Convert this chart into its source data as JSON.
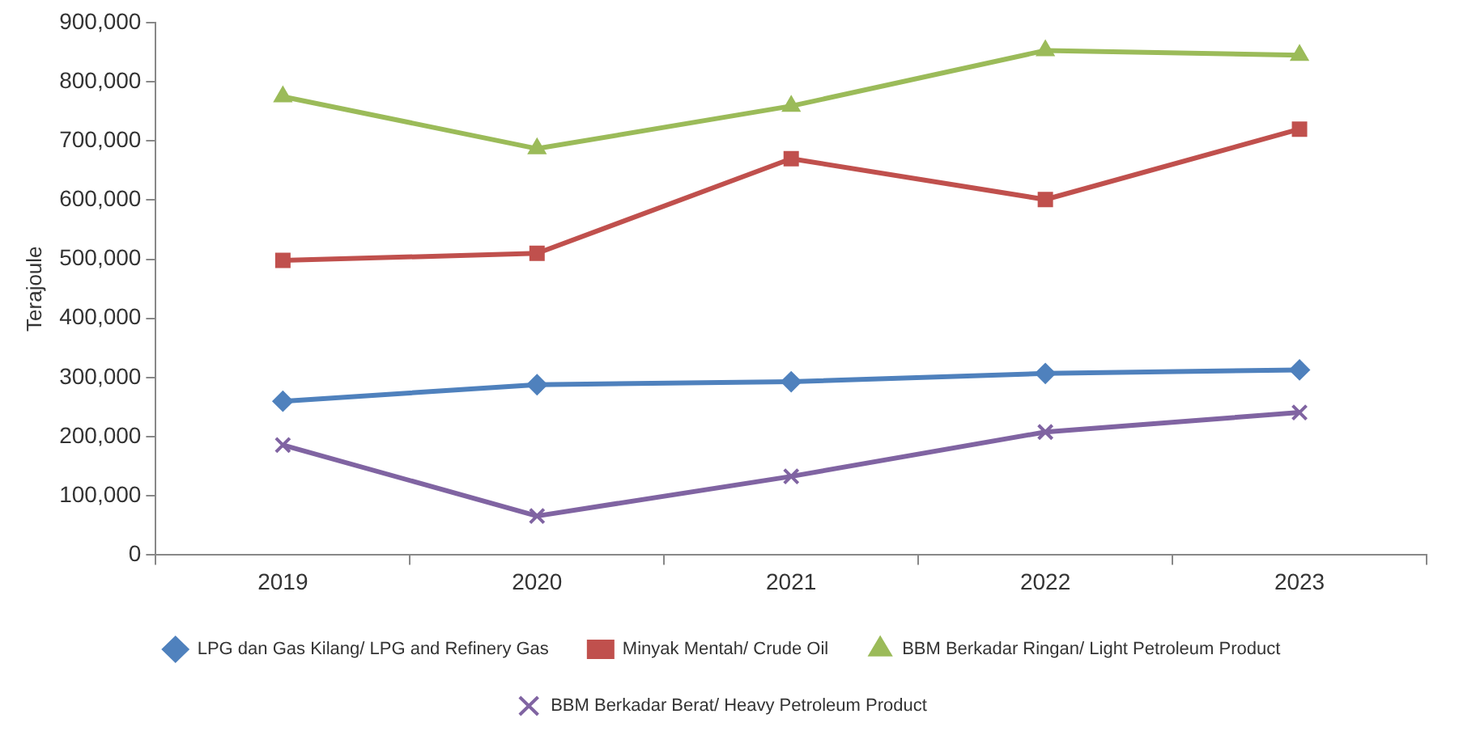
{
  "chart_data": {
    "type": "line",
    "ylabel": "Terajoule",
    "categories": [
      "2019",
      "2020",
      "2021",
      "2022",
      "2023"
    ],
    "series": [
      {
        "name": "LPG dan Gas Kilang/ LPG and Refinery Gas",
        "color": "#4f81bd",
        "marker": "diamond",
        "values": [
          260000,
          288000,
          293000,
          307000,
          313000
        ]
      },
      {
        "name": "Minyak Mentah/ Crude Oil",
        "color": "#c0504d",
        "marker": "square",
        "values": [
          498000,
          510000,
          670000,
          601000,
          720000
        ]
      },
      {
        "name": "BBM Berkadar Ringan/ Light Petroleum Product",
        "color": "#9bbb59",
        "marker": "triangle",
        "values": [
          775000,
          687000,
          759000,
          853000,
          845000
        ]
      },
      {
        "name": "BBM Berkadar Berat/ Heavy Petroleum Product",
        "color": "#8064a2",
        "marker": "cross",
        "values": [
          186000,
          66000,
          133000,
          208000,
          241000
        ]
      }
    ],
    "ylim": [
      0,
      900000
    ],
    "yticks": [
      0,
      {
        "value": 100000,
        "label": "100,000"
      },
      {
        "value": 200000,
        "label": "200,000"
      },
      {
        "value": 300000,
        "label": "300,000"
      },
      {
        "value": 400000,
        "label": "400,000"
      },
      {
        "value": 500000,
        "label": "500,000"
      },
      {
        "value": 600000,
        "label": "600,000"
      },
      {
        "value": 700000,
        "label": "700,000"
      },
      {
        "value": 800000,
        "label": "800,000"
      },
      {
        "value": 900000,
        "label": "900,000"
      }
    ],
    "grid": false,
    "legend": "bottom",
    "line_style": "solid"
  }
}
